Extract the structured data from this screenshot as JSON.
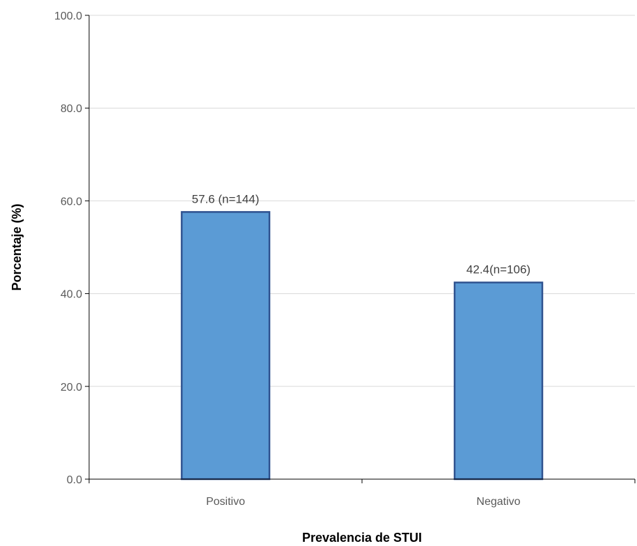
{
  "chart_data": {
    "type": "bar",
    "title": "",
    "xlabel": "Prevalencia de STUI",
    "ylabel": "Porcentaje (%)",
    "categories": [
      "Positivo",
      "Negativo"
    ],
    "values": [
      57.6,
      42.4
    ],
    "data_labels": [
      "57.6 (n=144)",
      "42.4(n=106)"
    ],
    "ylim": [
      0,
      100
    ],
    "yticks": [
      "0.0",
      "20.0",
      "40.0",
      "60.0",
      "80.0",
      "100.0"
    ],
    "grid": true,
    "legend": "none",
    "colors": {
      "bar_fill": "#5b9bd5",
      "bar_stroke": "#2f528f",
      "grid": "#d9d9d9",
      "axis": "#000000"
    }
  }
}
